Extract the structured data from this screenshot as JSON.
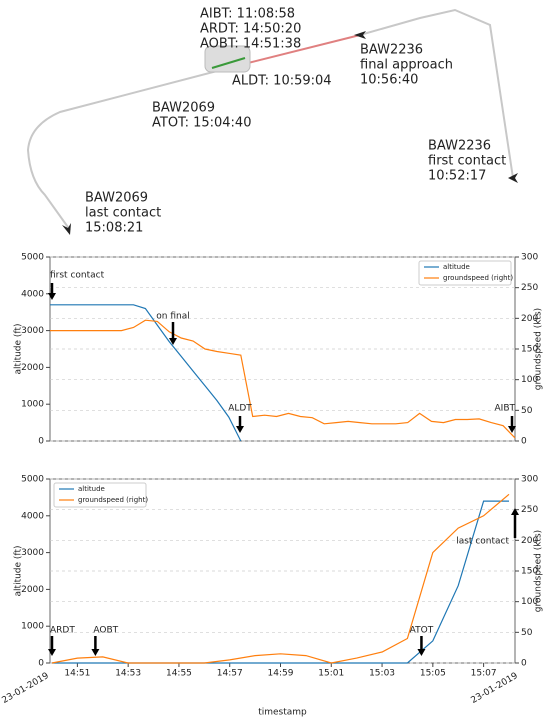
{
  "chart_data": [
    {
      "type": "trajectory",
      "annotations": [
        [
          "AIBT:  11:08:58",
          "ARDT: 14:50:20",
          "AOBT: 14:51:38"
        ],
        [
          "ALDT: 10:59:04"
        ],
        [
          "BAW2236",
          " final approach",
          "10:56:40"
        ],
        [
          "BAW2069",
          "ATOT: 15:04:40"
        ],
        [
          "BAW2236",
          " first contact",
          "10:52:17"
        ],
        [
          "BAW2069",
          " last contact",
          "15:08:21"
        ]
      ]
    },
    {
      "type": "line",
      "ylabel": "altitude (ft)",
      "y2label": "groundspeed (kts)",
      "ylim": [
        0,
        5000
      ],
      "yticks": [
        0,
        1000,
        2000,
        3000,
        4000,
        5000
      ],
      "y2lim": [
        0,
        300
      ],
      "y2ticks": [
        0,
        50,
        100,
        150,
        200,
        250,
        300
      ],
      "grid": true,
      "legend": "upper-right",
      "annotations": [
        "first contact",
        "on final",
        "ALDT",
        "AIBT"
      ],
      "series": [
        {
          "name": "altitude",
          "color": "#1f77b4",
          "values": [
            3700,
            3700,
            3700,
            3700,
            3700,
            3700,
            3700,
            3700,
            3600,
            3150,
            2700,
            2300,
            1900,
            1500,
            1100,
            650,
            0,
            null,
            null,
            null,
            null,
            null,
            null,
            null,
            null,
            null,
            null,
            null,
            null,
            null,
            null,
            null,
            null,
            null,
            null,
            null,
            null,
            null,
            null,
            null
          ]
        },
        {
          "name": "groundspeed (right)",
          "color": "#ff7f0e",
          "axis": "y2",
          "values": [
            180,
            180,
            180,
            180,
            180,
            180,
            180,
            185,
            197,
            195,
            178,
            168,
            163,
            150,
            146,
            143,
            140,
            40,
            42,
            40,
            45,
            40,
            38,
            28,
            30,
            32,
            30,
            28,
            28,
            28,
            30,
            45,
            32,
            30,
            35,
            35,
            36,
            30,
            25,
            5
          ]
        }
      ]
    },
    {
      "type": "line",
      "xlabel": "timestamp",
      "ylabel": "altitude (ft)",
      "y2label": "groundspeed (kts)",
      "x": [
        "14:50",
        "14:51",
        "14:52",
        "14:53",
        "14:54",
        "14:55",
        "14:56",
        "14:57",
        "14:58",
        "14:59",
        "15:00",
        "15:01",
        "15:02",
        "15:03",
        "15:04",
        "15:05",
        "15:06",
        "15:07",
        "15:08"
      ],
      "xlim": [
        "14:50",
        "15:08"
      ],
      "xticks": [
        "14:51",
        "14:53",
        "14:55",
        "14:57",
        "14:59",
        "15:01",
        "15:03",
        "15:05",
        "15:07"
      ],
      "date_labels": [
        "23-01-2019",
        "23-01-2019"
      ],
      "ylim": [
        0,
        5000
      ],
      "yticks": [
        0,
        1000,
        2000,
        3000,
        4000,
        5000
      ],
      "y2lim": [
        0,
        300
      ],
      "y2ticks": [
        0,
        50,
        100,
        150,
        200,
        250,
        300
      ],
      "grid": true,
      "legend": "upper-left",
      "annotations": [
        "ARDT",
        "AOBT",
        "ATOT",
        "last contact"
      ],
      "series": [
        {
          "name": "altitude",
          "color": "#1f77b4",
          "values": [
            0,
            0,
            0,
            0,
            0,
            0,
            0,
            0,
            0,
            0,
            0,
            0,
            0,
            0,
            0,
            600,
            2100,
            4400,
            4400
          ]
        },
        {
          "name": "groundspeed (right)",
          "color": "#ff7f0e",
          "axis": "y2",
          "values": [
            0,
            8,
            10,
            0,
            0,
            0,
            0,
            5,
            12,
            15,
            12,
            0,
            8,
            18,
            40,
            180,
            220,
            240,
            275
          ]
        }
      ]
    }
  ]
}
